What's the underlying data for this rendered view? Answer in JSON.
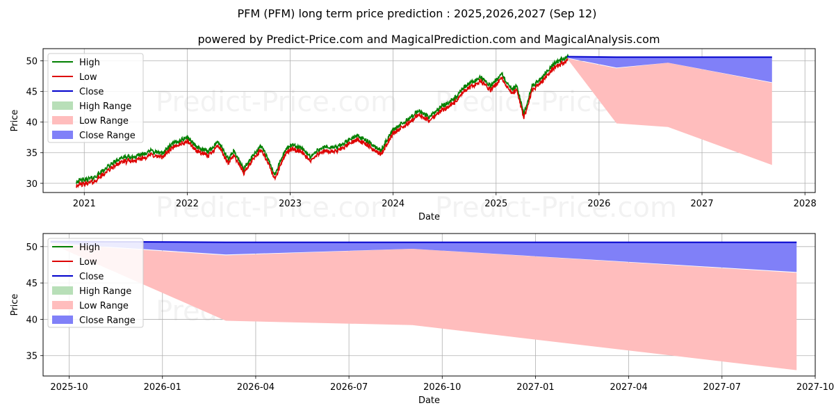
{
  "title": "PFM (PFM) long term price prediction : 2025,2026,2027 (Sep 12)",
  "subtitle": "powered by Predict-Price.com and MagicalPrediction.com and MagicalAnalysis.com",
  "watermark": "Predict-Price.com",
  "colors": {
    "high": "#008000",
    "low": "#dd0000",
    "close": "#0000cc",
    "high_range": "#b8dfb8",
    "low_range": "#ffbdbd",
    "close_range": "#8080f8",
    "grid": "#b0b0b0"
  },
  "legend_labels": [
    "High",
    "Low",
    "Close",
    "High Range",
    "Low Range",
    "Close Range"
  ],
  "chart_data": [
    {
      "type": "line",
      "name": "long-term",
      "xlabel": "Date",
      "ylabel": "Price",
      "xlim": [
        2020.6,
        2028.1
      ],
      "ylim": [
        28.5,
        52
      ],
      "x_ticks": [
        2021,
        2022,
        2023,
        2024,
        2025,
        2026,
        2027,
        2028
      ],
      "x_tick_labels": [
        "2021",
        "2022",
        "2023",
        "2024",
        "2025",
        "2026",
        "2027",
        "2028"
      ],
      "y_ticks": [
        30,
        35,
        40,
        45,
        50
      ],
      "y_tick_labels": [
        "30",
        "35",
        "40",
        "45",
        "50"
      ],
      "legend_position": "top-left",
      "history_anchors": [
        [
          2020.92,
          30.0
        ],
        [
          2021.0,
          30.2
        ],
        [
          2021.1,
          30.6
        ],
        [
          2021.2,
          32.0
        ],
        [
          2021.35,
          33.8
        ],
        [
          2021.5,
          34.0
        ],
        [
          2021.65,
          35.0
        ],
        [
          2021.75,
          34.5
        ],
        [
          2021.85,
          36.0
        ],
        [
          2022.0,
          37.2
        ],
        [
          2022.1,
          35.5
        ],
        [
          2022.2,
          34.8
        ],
        [
          2022.3,
          36.5
        ],
        [
          2022.4,
          33.5
        ],
        [
          2022.45,
          35.0
        ],
        [
          2022.55,
          32.0
        ],
        [
          2022.65,
          34.5
        ],
        [
          2022.72,
          35.8
        ],
        [
          2022.8,
          33.0
        ],
        [
          2022.85,
          31.0
        ],
        [
          2022.95,
          35.0
        ],
        [
          2023.0,
          35.8
        ],
        [
          2023.1,
          35.5
        ],
        [
          2023.2,
          34.0
        ],
        [
          2023.3,
          35.5
        ],
        [
          2023.45,
          35.5
        ],
        [
          2023.55,
          36.5
        ],
        [
          2023.65,
          37.5
        ],
        [
          2023.75,
          36.5
        ],
        [
          2023.88,
          35.0
        ],
        [
          2024.0,
          38.5
        ],
        [
          2024.1,
          39.5
        ],
        [
          2024.25,
          41.5
        ],
        [
          2024.35,
          40.5
        ],
        [
          2024.45,
          42.0
        ],
        [
          2024.6,
          43.5
        ],
        [
          2024.7,
          45.5
        ],
        [
          2024.85,
          47.0
        ],
        [
          2024.95,
          45.5
        ],
        [
          2025.05,
          47.5
        ],
        [
          2025.15,
          45.0
        ],
        [
          2025.2,
          45.5
        ],
        [
          2025.27,
          41.0
        ],
        [
          2025.35,
          45.5
        ],
        [
          2025.45,
          47.0
        ],
        [
          2025.55,
          49.0
        ],
        [
          2025.7,
          50.5
        ]
      ],
      "history_seed": 42,
      "history_noise": 0.35,
      "forecast": {
        "x": [
          2025.69,
          2026.17,
          2026.67,
          2027.68
        ],
        "close": [
          50.7,
          50.6,
          50.6,
          50.6
        ],
        "close_range_low": [
          50.5,
          48.9,
          49.7,
          46.5
        ],
        "low_range_high": [
          50.4,
          48.8,
          49.7,
          46.4
        ],
        "low_range_low": [
          50.4,
          39.8,
          39.2,
          33.0
        ]
      }
    },
    {
      "type": "area",
      "name": "forecast-zoom",
      "xlabel": "Date",
      "ylabel": "Price",
      "xlim": [
        2025.68,
        2027.75
      ],
      "ylim": [
        32.2,
        51.8
      ],
      "x_ticks": [
        2025.75,
        2026.0,
        2026.25,
        2026.5,
        2026.75,
        2027.0,
        2027.25,
        2027.5,
        2027.75
      ],
      "x_tick_labels": [
        "2025-10",
        "2026-01",
        "2026-04",
        "2026-07",
        "2026-10",
        "2027-01",
        "2027-04",
        "2027-07",
        "2027-10"
      ],
      "y_ticks": [
        35,
        40,
        45,
        50
      ],
      "y_tick_labels": [
        "35",
        "40",
        "45",
        "50"
      ],
      "legend_position": "top-left",
      "series_x": [
        2025.7,
        2026.17,
        2026.67,
        2027.7
      ],
      "close": [
        50.7,
        50.6,
        50.6,
        50.6
      ],
      "close_range_low": [
        50.5,
        48.9,
        49.7,
        46.5
      ],
      "low_range_high": [
        50.4,
        48.8,
        49.7,
        46.4
      ],
      "low_range_low": [
        50.4,
        39.8,
        39.2,
        33.0
      ]
    }
  ]
}
